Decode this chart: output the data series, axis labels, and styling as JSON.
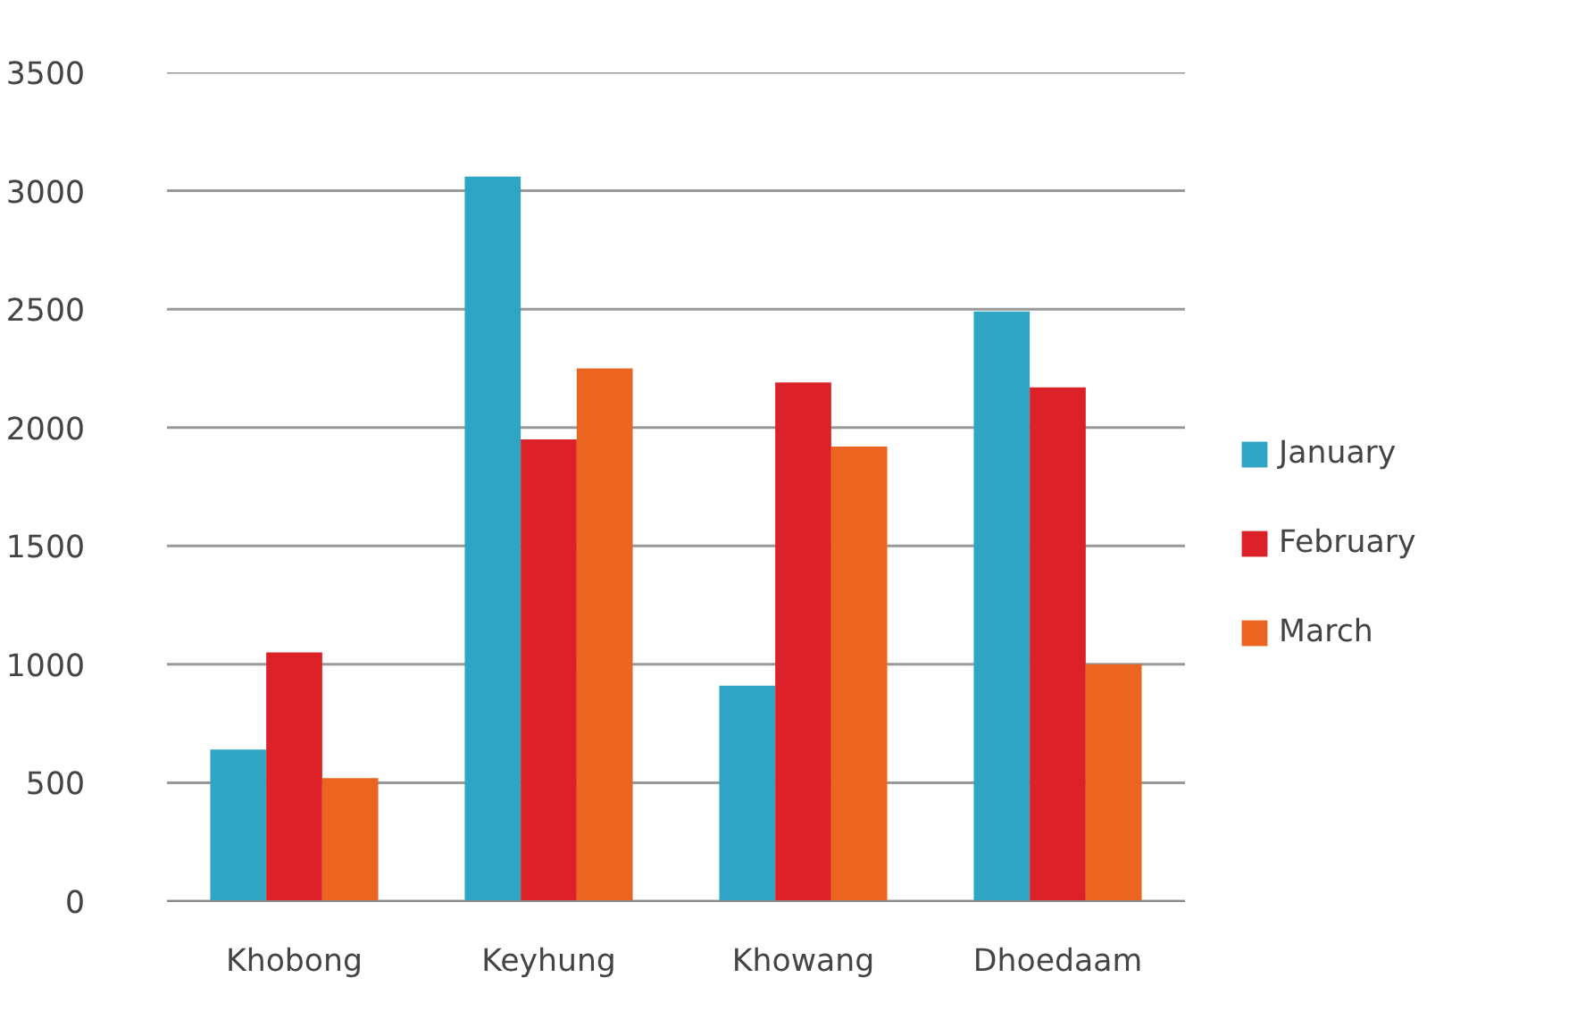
{
  "chart_data": {
    "type": "bar",
    "categories": [
      "Khobong",
      "Keyhung",
      "Khowang",
      "Dhoedaam"
    ],
    "series": [
      {
        "name": "January",
        "color": "#2ea5c4",
        "values": [
          640,
          3060,
          910,
          2490
        ]
      },
      {
        "name": "February",
        "color": "#dc2228",
        "values": [
          1050,
          1950,
          2190,
          2170
        ]
      },
      {
        "name": "March",
        "color": "#ec6520",
        "values": [
          520,
          2250,
          1920,
          1000
        ]
      }
    ],
    "ylim": [
      0,
      3500
    ],
    "yticks": [
      0,
      500,
      1000,
      1500,
      2000,
      2500,
      3000,
      3500
    ],
    "grid": "y",
    "legend": "right"
  }
}
